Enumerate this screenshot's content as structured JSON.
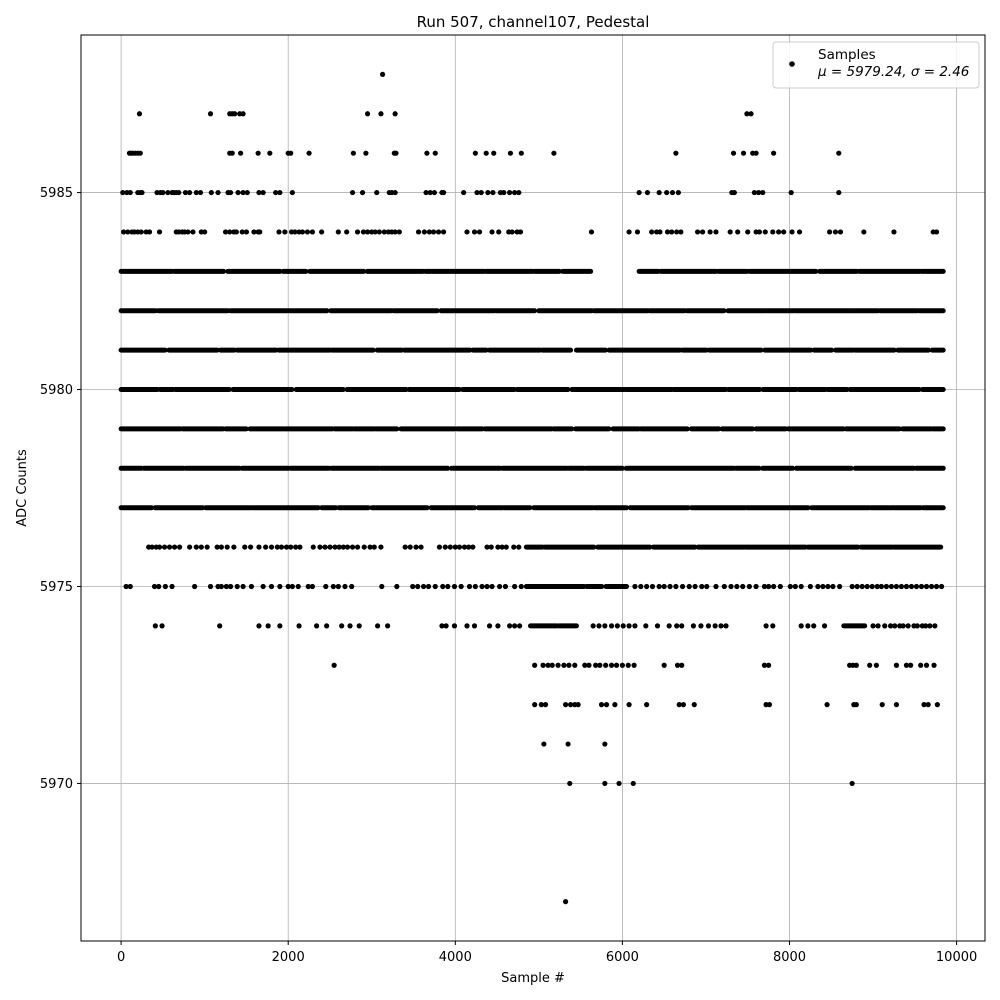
{
  "chart_data": {
    "type": "scatter",
    "title": "Run 507, channel107, Pedestal",
    "xlabel": "Sample #",
    "ylabel": "ADC Counts",
    "xlim": [
      -480,
      10340
    ],
    "ylim": [
      5966,
      5989
    ],
    "xticks": [
      0,
      2000,
      4000,
      6000,
      8000,
      10000
    ],
    "yticks": [
      5970,
      5975,
      5980,
      5985
    ],
    "grid": true,
    "legend": {
      "position": "top-right",
      "entries": [
        {
          "line1": "Samples",
          "line2": "μ = 5979.24, σ = 2.46"
        }
      ]
    },
    "series": [
      {
        "name": "Samples",
        "color": "#000000",
        "marker": "circle",
        "bands": [
          {
            "y": 5983,
            "segments": [
              [
                0,
                5620
              ],
              [
                6200,
                9840
              ]
            ]
          },
          {
            "y": 5982,
            "segments": [
              [
                0,
                4950
              ],
              [
                5000,
                9840
              ]
            ]
          },
          {
            "y": 5981,
            "segments": [
              [
                0,
                5380
              ],
              [
                5450,
                9840
              ]
            ]
          },
          {
            "y": 5980,
            "segments": [
              [
                0,
                9840
              ]
            ]
          },
          {
            "y": 5979,
            "segments": [
              [
                0,
                3300
              ],
              [
                3350,
                9840
              ]
            ]
          },
          {
            "y": 5978,
            "segments": [
              [
                0,
                9840
              ]
            ]
          },
          {
            "y": 5977,
            "segments": [
              [
                0,
                9840
              ]
            ]
          },
          {
            "y": 5976,
            "segments": [
              [
                4850,
                9840
              ]
            ]
          },
          {
            "y": 5975,
            "segments": [
              [
                4850,
                6050
              ]
            ]
          },
          {
            "y": 5974,
            "segments": [
              [
                4900,
                5450
              ],
              [
                8650,
                8900
              ]
            ]
          }
        ],
        "sparse": [
          {
            "y": 5986,
            "x": [
              100,
              120,
              140,
              170,
              200,
              230,
              1300,
              1330,
              1430,
              1640,
              1780,
              2000,
              2030,
              2250,
              2780,
              2930,
              3270,
              3290,
              3660,
              3760,
              4240,
              4370,
              4460,
              4660,
              4790,
              5180,
              6640,
              7330,
              7450,
              7560,
              7600,
              7810,
              8590
            ]
          },
          {
            "y": 5987,
            "x": [
              220,
              1070,
              1300,
              1330,
              1360,
              1420,
              1460,
              2950,
              3110,
              3280,
              7490,
              7540
            ]
          },
          {
            "y": 5988,
            "x": [
              3130
            ]
          },
          {
            "y": 5985,
            "x": [
              20,
              70,
              110,
              200,
              230,
              250,
              430,
              470,
              500,
              560,
              610,
              630,
              660,
              690,
              770,
              820,
              900,
              950,
              1080,
              1160,
              1280,
              1310,
              1400,
              1460,
              1510,
              1650,
              1700,
              1850,
              1900,
              2050,
              2770,
              2890,
              3060,
              3210,
              3240,
              3280,
              3650,
              3700,
              3750,
              3840,
              3860,
              4100,
              4260,
              4310,
              4390,
              4450,
              4540,
              4580,
              4650,
              4710,
              4760,
              6200,
              6300,
              6440,
              6530,
              6600,
              6670,
              7310,
              7340,
              7580,
              7630,
              7680,
              8020,
              8590
            ]
          },
          {
            "y": 5984,
            "x": [
              30,
              80,
              130,
              160,
              200,
              240,
              300,
              340,
              460,
              660,
              690,
              730,
              760,
              800,
              860,
              960,
              1000,
              1250,
              1300,
              1350,
              1380,
              1450,
              1500,
              1590,
              1640,
              1660,
              1890,
              1960,
              2040,
              2080,
              2130,
              2170,
              2230,
              2290,
              2400,
              2600,
              2700,
              2830,
              2900,
              2950,
              3000,
              3040,
              3090,
              3150,
              3200,
              3240,
              3280,
              3330,
              3560,
              3630,
              3690,
              3740,
              3800,
              3860,
              4140,
              4230,
              4290,
              4440,
              4520,
              4640,
              4680,
              4740,
              4780,
              5630,
              6080,
              6180,
              6350,
              6410,
              6450,
              6540,
              6590,
              6650,
              6700,
              6900,
              6960,
              7050,
              7120,
              7290,
              7380,
              7500,
              7600,
              7640,
              7710,
              7800,
              7870,
              7930,
              8030,
              8120,
              8480,
              8550,
              8610,
              8890,
              9250,
              9720,
              9760
            ]
          },
          {
            "y": 5976,
            "x": [
              330,
              370,
              420,
              460,
              520,
              580,
              640,
              700,
              820,
              900,
              960,
              1030,
              1150,
              1200,
              1270,
              1350,
              1480,
              1550,
              1650,
              1730,
              1800,
              1870,
              1920,
              1980,
              2030,
              2090,
              2140,
              2300,
              2380,
              2440,
              2500,
              2560,
              2610,
              2660,
              2710,
              2770,
              2830,
              2910,
              2980,
              3030,
              3110,
              3400,
              3460,
              3530,
              3590,
              3810,
              3880,
              3940,
              4000,
              4050,
              4110,
              4160,
              4210,
              4380,
              4430,
              4510,
              4560,
              4610,
              4700,
              4760
            ]
          },
          {
            "y": 5975,
            "x": [
              60,
              110,
              400,
              450,
              530,
              610,
              880,
              1070,
              1160,
              1200,
              1260,
              1310,
              1390,
              1460,
              1560,
              1700,
              1800,
              1900,
              2000,
              2050,
              2120,
              2240,
              2290,
              2450,
              2540,
              2600,
              2680,
              2760,
              3120,
              3300,
              3490,
              3550,
              3620,
              3680,
              3760,
              3850,
              3910,
              3990,
              4070,
              4170,
              4240,
              4320,
              4380,
              4440,
              4530,
              4600,
              4710,
              4790,
              6150,
              6220,
              6290,
              6360,
              6440,
              6500,
              6570,
              6640,
              6720,
              6800,
              6870,
              6950,
              7010,
              7120,
              7220,
              7300,
              7370,
              7440,
              7520,
              7600,
              7700,
              7750,
              7810,
              7890,
              8010,
              8070,
              8140,
              8250,
              8340,
              8400,
              8460,
              8520,
              8600,
              8750,
              8810,
              8870,
              8930,
              8990,
              9050,
              9100,
              9160,
              9220,
              9280,
              9340,
              9400,
              9460,
              9520,
              9580,
              9640,
              9700,
              9760,
              9820
            ]
          },
          {
            "y": 5974,
            "x": [
              410,
              490,
              1180,
              1650,
              1760,
              1900,
              2130,
              2340,
              2460,
              2640,
              2740,
              2850,
              3070,
              3190,
              3840,
              3890,
              3990,
              4140,
              4230,
              4410,
              4510,
              4650,
              4710,
              4770,
              5650,
              5720,
              5790,
              5870,
              5940,
              6010,
              6080,
              6150,
              6280,
              6420,
              6560,
              6650,
              6710,
              6850,
              6940,
              7030,
              7110,
              7180,
              7240,
              7720,
              7800,
              8140,
              8220,
              8290,
              8420,
              9000,
              9060,
              9140,
              9210,
              9260,
              9320,
              9360,
              9420,
              9490,
              9530,
              9590,
              9630,
              9680,
              9740
            ]
          },
          {
            "y": 5973,
            "x": [
              2550,
              4950,
              5050,
              5110,
              5160,
              5230,
              5300,
              5360,
              5430,
              5550,
              5600,
              5680,
              5730,
              5800,
              5870,
              5930,
              6000,
              6070,
              6140,
              6500,
              6660,
              6710,
              7700,
              7750,
              8720,
              8760,
              8800,
              8960,
              9040,
              9280,
              9400,
              9450,
              9570,
              9640,
              9730
            ]
          },
          {
            "y": 5972,
            "x": [
              4950,
              5030,
              5080,
              5320,
              5380,
              5430,
              5470,
              5750,
              5810,
              5910,
              6080,
              6290,
              6680,
              6730,
              6860,
              7720,
              7760,
              8450,
              8770,
              8800,
              9110,
              9280,
              9610,
              9660,
              9770
            ]
          },
          {
            "y": 5971,
            "x": [
              5060,
              5350,
              5790
            ]
          },
          {
            "y": 5970,
            "x": [
              5370,
              5790,
              5960,
              6130,
              8750
            ]
          },
          {
            "y": 5967,
            "x": [
              5320
            ]
          }
        ]
      }
    ]
  }
}
